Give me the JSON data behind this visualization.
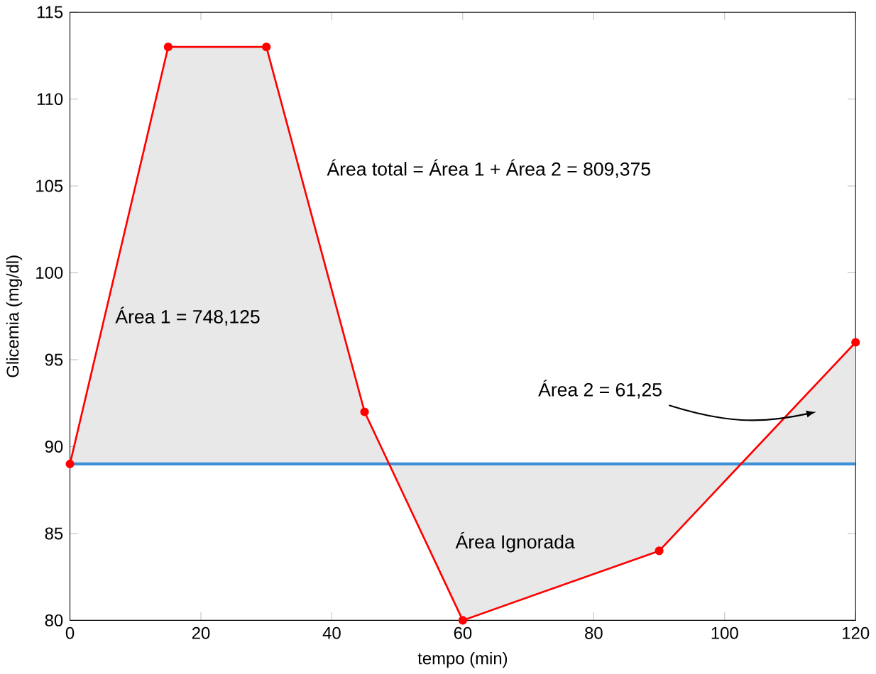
{
  "chart_data": {
    "type": "area",
    "xlabel": "tempo (min)",
    "ylabel": "Glicemia (mg/dl)",
    "x": [
      0,
      15,
      30,
      45,
      60,
      90,
      120
    ],
    "series": [
      {
        "color": "#ff0000",
        "values": [
          89,
          113,
          113,
          92,
          80,
          84,
          96
        ],
        "marker": "circle"
      }
    ],
    "ref_lines": [
      {
        "axis": "y",
        "value": 89,
        "color": "#3d8fd6"
      }
    ],
    "annotations": [
      "Área total = Área 1 + Área 2 = 809,375",
      "Área 1 = 748,125",
      "Área Ignorada",
      "Área 2 = 61,25"
    ],
    "xlim": [
      0,
      120
    ],
    "xticks": [
      0,
      20,
      40,
      60,
      80,
      100,
      120
    ],
    "ylim": [
      80,
      115
    ],
    "yticks": [
      80,
      85,
      90,
      95,
      100,
      105,
      110,
      115
    ],
    "grid": false
  }
}
